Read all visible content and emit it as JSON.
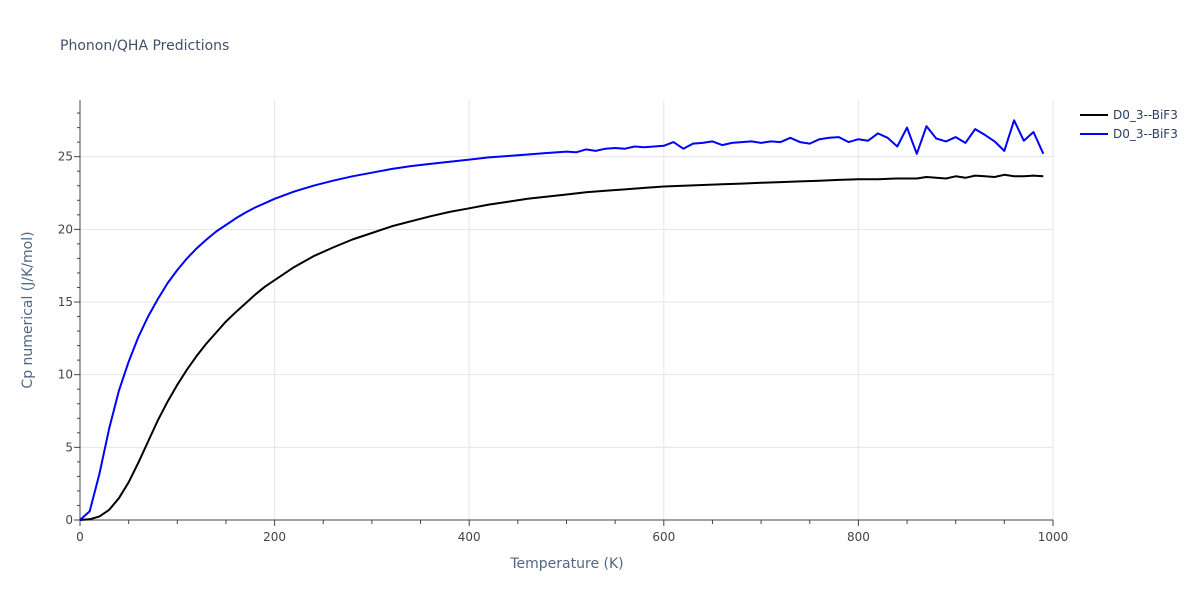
{
  "chart_data": {
    "type": "line",
    "title": "Phonon/QHA Predictions",
    "xlabel": "Temperature (K)",
    "ylabel": "Cp numerical (J/K/mol)",
    "xlim": [
      0,
      1000
    ],
    "ylim": [
      0,
      28.9
    ],
    "xticks": [
      0,
      200,
      400,
      600,
      800,
      1000
    ],
    "yticks": [
      0,
      5,
      10,
      15,
      20,
      25
    ],
    "grid": true,
    "legend_position": "top-right",
    "series": [
      {
        "name": "D0_3--BiF3",
        "color": "#000000",
        "x": [
          0,
          10,
          20,
          30,
          40,
          50,
          60,
          70,
          80,
          90,
          100,
          110,
          120,
          130,
          140,
          150,
          160,
          170,
          180,
          190,
          200,
          220,
          240,
          260,
          280,
          300,
          320,
          340,
          360,
          380,
          400,
          420,
          440,
          460,
          480,
          500,
          520,
          540,
          560,
          580,
          600,
          620,
          640,
          660,
          680,
          700,
          720,
          740,
          760,
          780,
          800,
          820,
          840,
          860,
          870,
          880,
          890,
          900,
          910,
          920,
          930,
          940,
          950,
          960,
          970,
          980,
          990
        ],
        "y": [
          0,
          0.05,
          0.25,
          0.7,
          1.5,
          2.6,
          3.95,
          5.4,
          6.85,
          8.15,
          9.3,
          10.35,
          11.3,
          12.15,
          12.9,
          13.65,
          14.3,
          14.9,
          15.5,
          16.05,
          16.5,
          17.4,
          18.15,
          18.75,
          19.3,
          19.75,
          20.2,
          20.55,
          20.9,
          21.2,
          21.45,
          21.7,
          21.9,
          22.1,
          22.25,
          22.4,
          22.55,
          22.65,
          22.75,
          22.85,
          22.95,
          23.0,
          23.05,
          23.1,
          23.15,
          23.2,
          23.25,
          23.3,
          23.35,
          23.4,
          23.45,
          23.45,
          23.5,
          23.5,
          23.6,
          23.55,
          23.5,
          23.65,
          23.55,
          23.7,
          23.65,
          23.6,
          23.75,
          23.65,
          23.65,
          23.7,
          23.65
        ]
      },
      {
        "name": "D0_3--BiF3",
        "color": "#0000ff",
        "x": [
          0,
          10,
          20,
          30,
          40,
          50,
          60,
          70,
          80,
          90,
          100,
          110,
          120,
          130,
          140,
          150,
          160,
          170,
          180,
          190,
          200,
          220,
          240,
          260,
          280,
          300,
          320,
          340,
          360,
          380,
          400,
          420,
          440,
          460,
          480,
          500,
          510,
          520,
          530,
          540,
          550,
          560,
          570,
          580,
          590,
          600,
          610,
          620,
          630,
          640,
          650,
          660,
          670,
          680,
          690,
          700,
          710,
          720,
          730,
          740,
          750,
          760,
          770,
          780,
          790,
          800,
          810,
          820,
          830,
          840,
          850,
          860,
          870,
          880,
          890,
          900,
          910,
          920,
          930,
          940,
          950,
          960,
          970,
          980,
          990
        ],
        "y": [
          0,
          0.6,
          3.2,
          6.3,
          8.9,
          10.9,
          12.6,
          14.0,
          15.2,
          16.3,
          17.2,
          18.0,
          18.7,
          19.3,
          19.85,
          20.3,
          20.75,
          21.15,
          21.5,
          21.8,
          22.1,
          22.6,
          23.0,
          23.35,
          23.65,
          23.9,
          24.15,
          24.35,
          24.5,
          24.65,
          24.8,
          24.95,
          25.05,
          25.15,
          25.25,
          25.35,
          25.3,
          25.5,
          25.4,
          25.55,
          25.6,
          25.55,
          25.7,
          25.65,
          25.7,
          25.75,
          26.0,
          25.55,
          25.9,
          25.95,
          26.05,
          25.8,
          25.95,
          26.0,
          26.05,
          25.95,
          26.05,
          26.0,
          26.3,
          26.0,
          25.9,
          26.2,
          26.3,
          26.35,
          26.0,
          26.2,
          26.1,
          26.6,
          26.3,
          25.7,
          27.0,
          25.2,
          27.1,
          26.25,
          26.05,
          26.35,
          25.95,
          26.9,
          26.5,
          26.05,
          25.4,
          27.5,
          26.1,
          26.7,
          25.2
        ]
      }
    ]
  }
}
